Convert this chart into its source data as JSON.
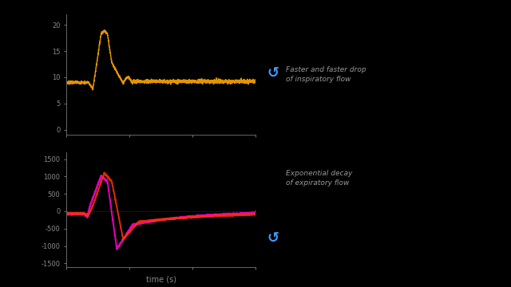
{
  "bg_color": "#000000",
  "top_plot": {
    "ylabel_ticks": [
      0,
      5,
      10,
      15,
      20
    ],
    "color": "#FFA500",
    "xlim": [
      0,
      3
    ],
    "ylim": [
      -1,
      22
    ]
  },
  "bottom_plot": {
    "ylabel_ticks": [
      -1500,
      -1000,
      -500,
      0,
      500,
      1000,
      1500
    ],
    "color_magenta": "#FF00CC",
    "color_red": "#FF3300",
    "xlim": [
      0,
      3
    ],
    "ylim": [
      -1600,
      1700
    ],
    "xlabel": "time (s)"
  },
  "annotation1": "Faster and faster drop\nof inspiratory flow",
  "annotation2": "Exponential decay\nof expiratory flow",
  "annotation_color": "#999999",
  "arrow_color": "#4499FF"
}
